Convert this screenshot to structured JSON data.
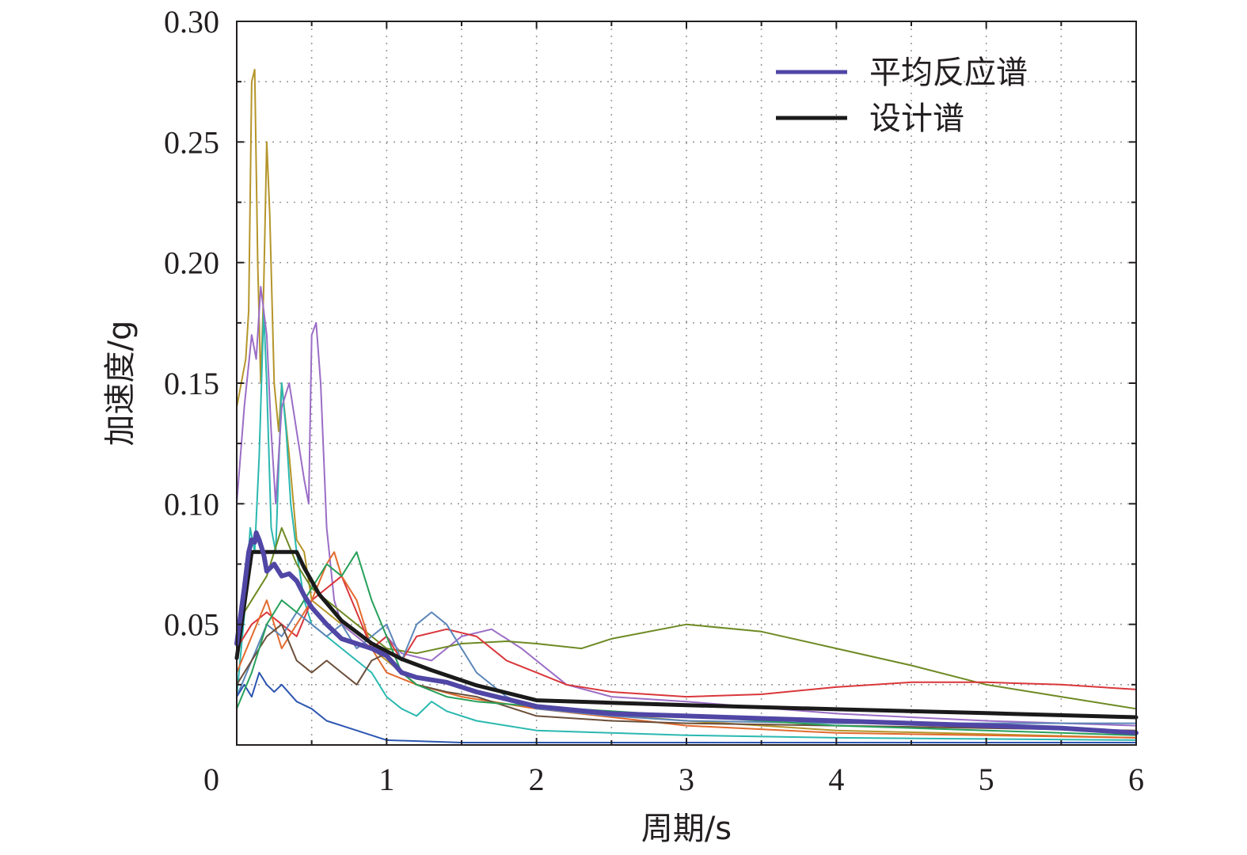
{
  "chart_data": {
    "type": "line",
    "xlabel": "周期/s",
    "ylabel": "加速度/g",
    "xlim": [
      0,
      6
    ],
    "ylim": [
      0,
      0.3
    ],
    "xticks": [
      "0",
      "1",
      "2",
      "3",
      "4",
      "5",
      "6"
    ],
    "yticks": [
      "0.05",
      "0.10",
      "0.15",
      "0.20",
      "0.25",
      "0.30"
    ],
    "grid": true,
    "legend_position": "top-right",
    "legend": [
      {
        "label": "平均反应谱",
        "color": "#5046a5"
      },
      {
        "label": "设计谱",
        "color": "#1a1a1a"
      }
    ],
    "series": [
      {
        "name": "设计谱",
        "color": "#1a1a1a",
        "width": 5,
        "x": [
          0,
          0.1,
          0.4,
          0.45,
          0.55,
          0.7,
          0.9,
          1.1,
          1.3,
          1.6,
          2.0,
          2.5,
          3.0,
          4.0,
          5.0,
          6.0
        ],
        "y": [
          0.036,
          0.08,
          0.08,
          0.0735,
          0.0625,
          0.0515,
          0.0421,
          0.0356,
          0.031,
          0.0247,
          0.0185,
          0.0175,
          0.0165,
          0.0148,
          0.0132,
          0.0115
        ]
      },
      {
        "name": "平均反应谱",
        "color": "#5046a5",
        "width": 6,
        "x": [
          0,
          0.05,
          0.08,
          0.1,
          0.12,
          0.13,
          0.15,
          0.18,
          0.2,
          0.25,
          0.3,
          0.35,
          0.4,
          0.45,
          0.5,
          0.6,
          0.7,
          0.8,
          0.9,
          1.0,
          1.1,
          1.2,
          1.4,
          1.6,
          1.8,
          2.0,
          2.5,
          3.0,
          3.5,
          4.0,
          4.5,
          5.0,
          5.5,
          6.0
        ],
        "y": [
          0.042,
          0.065,
          0.08,
          0.085,
          0.084,
          0.088,
          0.085,
          0.079,
          0.072,
          0.075,
          0.07,
          0.071,
          0.068,
          0.062,
          0.057,
          0.05,
          0.044,
          0.042,
          0.04,
          0.037,
          0.03,
          0.028,
          0.026,
          0.022,
          0.019,
          0.016,
          0.013,
          0.012,
          0.011,
          0.01,
          0.009,
          0.008,
          0.007,
          0.005
        ]
      },
      {
        "color": "#b5952a",
        "width": 2,
        "x": [
          0,
          0.03,
          0.06,
          0.08,
          0.1,
          0.12,
          0.14,
          0.16,
          0.18,
          0.2,
          0.22,
          0.25,
          0.28,
          0.3,
          0.35,
          0.4,
          0.45,
          0.5,
          0.6,
          0.7,
          0.8,
          0.9,
          1.0,
          1.2,
          1.5,
          2.0,
          3.0,
          4.0,
          6.0
        ],
        "y": [
          0.14,
          0.15,
          0.16,
          0.18,
          0.275,
          0.28,
          0.2,
          0.15,
          0.19,
          0.25,
          0.22,
          0.15,
          0.13,
          0.15,
          0.12,
          0.085,
          0.08,
          0.06,
          0.055,
          0.05,
          0.045,
          0.04,
          0.035,
          0.025,
          0.02,
          0.015,
          0.01,
          0.006,
          0.003
        ]
      },
      {
        "color": "#2ab8b0",
        "width": 2,
        "x": [
          0,
          0.03,
          0.06,
          0.09,
          0.12,
          0.15,
          0.18,
          0.2,
          0.23,
          0.26,
          0.3,
          0.33,
          0.36,
          0.4,
          0.45,
          0.5,
          0.6,
          0.7,
          0.8,
          0.9,
          1.0,
          1.1,
          1.2,
          1.3,
          1.4,
          1.6,
          1.8,
          2.0,
          2.5,
          3.0,
          4.0,
          6.0
        ],
        "y": [
          0.02,
          0.04,
          0.06,
          0.09,
          0.08,
          0.12,
          0.18,
          0.15,
          0.09,
          0.08,
          0.15,
          0.13,
          0.1,
          0.08,
          0.06,
          0.05,
          0.045,
          0.04,
          0.035,
          0.03,
          0.02,
          0.015,
          0.012,
          0.018,
          0.014,
          0.01,
          0.008,
          0.006,
          0.005,
          0.004,
          0.003,
          0.002
        ]
      },
      {
        "color": "#9b6dc6",
        "width": 2,
        "x": [
          0,
          0.05,
          0.1,
          0.13,
          0.16,
          0.2,
          0.23,
          0.26,
          0.3,
          0.35,
          0.4,
          0.45,
          0.48,
          0.5,
          0.53,
          0.56,
          0.6,
          0.65,
          0.7,
          0.8,
          0.9,
          1.0,
          1.1,
          1.3,
          1.5,
          1.7,
          1.9,
          2.2,
          2.5,
          3.0,
          4.0,
          5.0,
          6.0
        ],
        "y": [
          0.1,
          0.14,
          0.17,
          0.16,
          0.19,
          0.17,
          0.13,
          0.1,
          0.14,
          0.15,
          0.13,
          0.11,
          0.1,
          0.17,
          0.175,
          0.15,
          0.09,
          0.06,
          0.05,
          0.045,
          0.04,
          0.045,
          0.038,
          0.035,
          0.045,
          0.048,
          0.04,
          0.025,
          0.02,
          0.018,
          0.013,
          0.01,
          0.008
        ]
      },
      {
        "color": "#6e8a23",
        "width": 2,
        "x": [
          0,
          0.1,
          0.2,
          0.3,
          0.4,
          0.5,
          0.6,
          0.7,
          0.8,
          0.9,
          1.0,
          1.2,
          1.5,
          1.8,
          2.0,
          2.3,
          2.5,
          3.0,
          3.5,
          4.0,
          4.5,
          5.0,
          5.5,
          6.0
        ],
        "y": [
          0.05,
          0.06,
          0.07,
          0.09,
          0.075,
          0.065,
          0.06,
          0.055,
          0.05,
          0.045,
          0.04,
          0.038,
          0.042,
          0.043,
          0.042,
          0.04,
          0.044,
          0.05,
          0.047,
          0.04,
          0.033,
          0.025,
          0.02,
          0.015
        ]
      },
      {
        "color": "#d9373b",
        "width": 2,
        "x": [
          0,
          0.1,
          0.2,
          0.3,
          0.4,
          0.5,
          0.6,
          0.7,
          0.8,
          0.9,
          1.0,
          1.1,
          1.2,
          1.4,
          1.6,
          1.8,
          2.0,
          2.2,
          2.5,
          3.0,
          3.5,
          4.0,
          4.5,
          5.0,
          5.5,
          6.0
        ],
        "y": [
          0.04,
          0.05,
          0.055,
          0.05,
          0.045,
          0.06,
          0.065,
          0.07,
          0.055,
          0.04,
          0.045,
          0.035,
          0.045,
          0.048,
          0.045,
          0.035,
          0.03,
          0.025,
          0.022,
          0.02,
          0.021,
          0.024,
          0.026,
          0.026,
          0.025,
          0.023
        ]
      },
      {
        "color": "#e36a2e",
        "width": 2,
        "x": [
          0,
          0.1,
          0.2,
          0.3,
          0.4,
          0.5,
          0.6,
          0.65,
          0.7,
          0.8,
          0.9,
          1.0,
          1.2,
          1.5,
          2.0,
          3.0,
          4.0,
          6.0
        ],
        "y": [
          0.03,
          0.045,
          0.06,
          0.04,
          0.05,
          0.06,
          0.075,
          0.08,
          0.07,
          0.06,
          0.04,
          0.03,
          0.025,
          0.02,
          0.015,
          0.008,
          0.005,
          0.003
        ]
      },
      {
        "color": "#5c86b8",
        "width": 2,
        "x": [
          0,
          0.1,
          0.2,
          0.3,
          0.4,
          0.5,
          0.6,
          0.7,
          0.8,
          0.9,
          1.0,
          1.1,
          1.2,
          1.3,
          1.4,
          1.5,
          1.6,
          1.8,
          2.0,
          2.5,
          3.0,
          4.0,
          5.0,
          6.0
        ],
        "y": [
          0.02,
          0.035,
          0.05,
          0.045,
          0.055,
          0.05,
          0.045,
          0.05,
          0.04,
          0.045,
          0.05,
          0.035,
          0.05,
          0.055,
          0.05,
          0.04,
          0.03,
          0.02,
          0.015,
          0.012,
          0.01,
          0.009,
          0.009,
          0.009
        ]
      },
      {
        "color": "#2c56b0",
        "width": 2,
        "x": [
          0,
          0.05,
          0.1,
          0.15,
          0.2,
          0.25,
          0.3,
          0.4,
          0.5,
          0.6,
          0.7,
          0.8,
          0.9,
          1.0,
          1.5,
          2.0,
          3.0,
          4.0,
          6.0
        ],
        "y": [
          0.02,
          0.025,
          0.02,
          0.03,
          0.025,
          0.022,
          0.025,
          0.018,
          0.015,
          0.01,
          0.008,
          0.006,
          0.004,
          0.002,
          0.001,
          0.001,
          0.001,
          0.001,
          0.001
        ]
      },
      {
        "color": "#6b4e3a",
        "width": 2,
        "x": [
          0,
          0.1,
          0.2,
          0.3,
          0.4,
          0.5,
          0.6,
          0.7,
          0.8,
          0.9,
          1.0,
          1.1,
          1.2,
          1.4,
          1.6,
          2.0,
          2.5,
          3.0,
          4.0,
          5.0,
          6.0
        ],
        "y": [
          0.025,
          0.035,
          0.045,
          0.05,
          0.035,
          0.03,
          0.035,
          0.03,
          0.025,
          0.035,
          0.038,
          0.03,
          0.025,
          0.022,
          0.02,
          0.012,
          0.01,
          0.009,
          0.008,
          0.007,
          0.006
        ]
      },
      {
        "color": "#27a05a",
        "width": 2,
        "x": [
          0,
          0.1,
          0.2,
          0.3,
          0.4,
          0.5,
          0.6,
          0.7,
          0.8,
          0.9,
          1.0,
          1.1,
          1.2,
          1.4,
          1.6,
          2.0,
          2.5,
          3.0,
          3.5,
          4.0,
          5.0,
          6.0
        ],
        "y": [
          0.015,
          0.03,
          0.05,
          0.06,
          0.055,
          0.065,
          0.075,
          0.07,
          0.08,
          0.06,
          0.045,
          0.03,
          0.025,
          0.02,
          0.018,
          0.016,
          0.014,
          0.012,
          0.01,
          0.008,
          0.006,
          0.004
        ]
      }
    ]
  }
}
